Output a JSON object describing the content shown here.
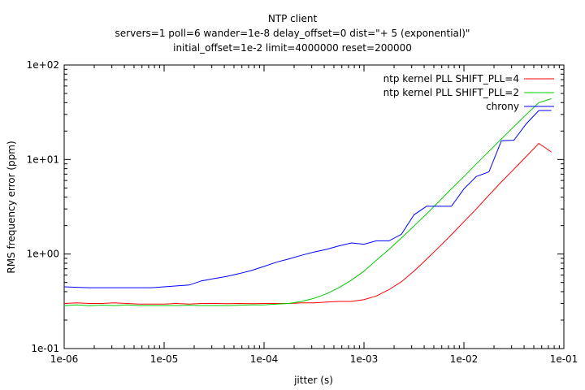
{
  "chart_data": {
    "type": "line",
    "title": "NTP client",
    "subtitle_lines": [
      "servers=1 poll=6 wander=1e-8 delay_offset=0 dist=\"+ 5 (exponential)\"",
      "initial_offset=1e-2 limit=4000000 reset=200000"
    ],
    "xlabel": "jitter (s)",
    "ylabel": "RMS frequency error (ppm)",
    "x_scale": "log",
    "y_scale": "log",
    "xlim": [
      1e-06,
      0.1
    ],
    "ylim": [
      0.1,
      100
    ],
    "x_ticks": [
      {
        "value": 1e-06,
        "label": "1e-06"
      },
      {
        "value": 1e-05,
        "label": "1e-05"
      },
      {
        "value": 0.0001,
        "label": "1e-04"
      },
      {
        "value": 0.001,
        "label": "1e-03"
      },
      {
        "value": 0.01,
        "label": "1e-02"
      },
      {
        "value": 0.1,
        "label": "1e-01"
      }
    ],
    "y_ticks": [
      {
        "value": 0.1,
        "label": "1e-01"
      },
      {
        "value": 1,
        "label": "1e+00"
      },
      {
        "value": 10,
        "label": "1e+01"
      },
      {
        "value": 100,
        "label": "1e+02"
      }
    ],
    "grid": false,
    "legend_position": "top-right",
    "x": [
      1e-06,
      1.33e-06,
      1.78e-06,
      2.37e-06,
      3.16e-06,
      4.22e-06,
      5.62e-06,
      7.5e-06,
      1e-05,
      1.33e-05,
      1.78e-05,
      2.37e-05,
      3.16e-05,
      4.22e-05,
      5.62e-05,
      7.5e-05,
      0.0001,
      0.000133,
      0.000178,
      0.000237,
      0.000316,
      0.000422,
      0.000562,
      0.00075,
      0.001,
      0.00133,
      0.00178,
      0.00237,
      0.00316,
      0.00422,
      0.00562,
      0.0075,
      0.01,
      0.0133,
      0.0178,
      0.0237,
      0.0316,
      0.0422,
      0.0562,
      0.075
    ],
    "series": [
      {
        "name": "ntp kernel PLL SHIFT_PLL=4",
        "color": "#ff0000",
        "values": [
          0.3,
          0.305,
          0.3,
          0.3,
          0.305,
          0.3,
          0.295,
          0.295,
          0.295,
          0.3,
          0.295,
          0.3,
          0.3,
          0.298,
          0.3,
          0.298,
          0.3,
          0.3,
          0.3,
          0.305,
          0.305,
          0.31,
          0.315,
          0.315,
          0.33,
          0.36,
          0.42,
          0.51,
          0.66,
          0.88,
          1.18,
          1.6,
          2.2,
          3.0,
          4.2,
          5.8,
          7.9,
          10.8,
          14.8,
          12.0
        ]
      },
      {
        "name": "ntp kernel PLL SHIFT_PLL=2",
        "color": "#00cc00",
        "values": [
          0.285,
          0.29,
          0.285,
          0.288,
          0.285,
          0.29,
          0.285,
          0.285,
          0.285,
          0.285,
          0.288,
          0.285,
          0.285,
          0.285,
          0.288,
          0.29,
          0.29,
          0.295,
          0.3,
          0.315,
          0.34,
          0.38,
          0.44,
          0.53,
          0.66,
          0.86,
          1.12,
          1.48,
          1.98,
          2.65,
          3.6,
          4.9,
          6.6,
          9.0,
          12.2,
          16.5,
          22.3,
          30.0,
          40.0,
          44.0
        ]
      },
      {
        "name": "chrony",
        "color": "#0000ff",
        "values": [
          0.45,
          0.445,
          0.44,
          0.44,
          0.44,
          0.44,
          0.44,
          0.44,
          0.45,
          0.46,
          0.47,
          0.52,
          0.55,
          0.58,
          0.62,
          0.67,
          0.74,
          0.82,
          0.89,
          0.97,
          1.05,
          1.12,
          1.22,
          1.31,
          1.27,
          1.38,
          1.38,
          1.62,
          2.6,
          3.2,
          3.2,
          3.2,
          4.9,
          6.6,
          7.4,
          15.8,
          16.0,
          24.0,
          33.0,
          33.0
        ]
      }
    ]
  }
}
